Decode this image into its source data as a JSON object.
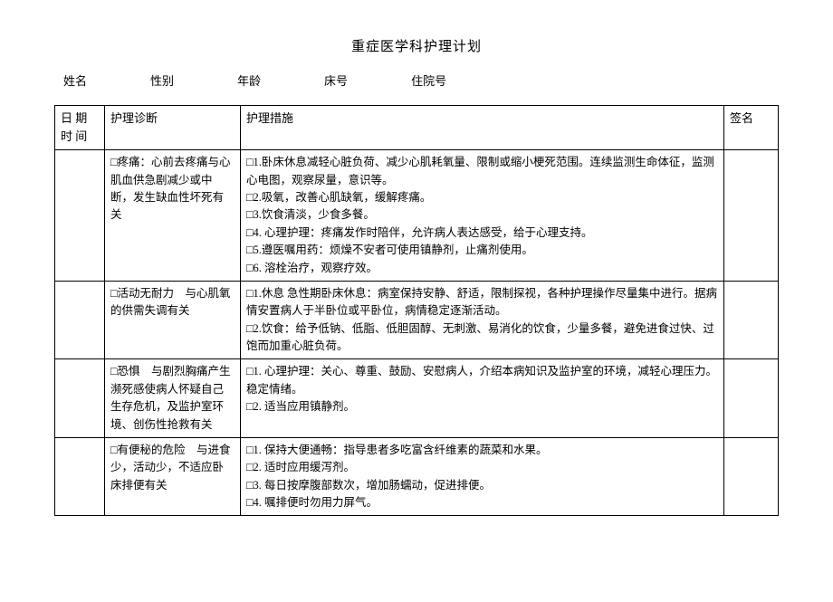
{
  "title": "重症医学科护理计划",
  "info": {
    "name_label": "姓名",
    "gender_label": "性别",
    "age_label": "年龄",
    "bed_label": "床号",
    "admission_label": "住院号"
  },
  "headers": {
    "date": "日 期",
    "time": "时 间",
    "diagnosis": "护理诊断",
    "measures": "护理措施",
    "signature": "签名"
  },
  "rows": [
    {
      "diagnosis": "□疼痛：心前去疼痛与心肌血供急剧减少或中断，发生缺血性坏死有关",
      "measures": "□1.卧床休息减轻心脏负荷、减少心肌耗氧量、限制或缩小梗死范围。连续监测生命体征，监测心电图，观察尿量，意识等。\n□2.吸氧，改善心肌缺氧，缓解疼痛。\n□3.饮食清淡，少食多餐。\n□4. 心理护理：疼痛发作时陪伴，允许病人表达感受，给于心理支持。\n□5.遵医嘱用药：烦燥不安者可使用镇静剂，止痛剂使用。\n□6. 溶栓治疗，观察疗效。"
    },
    {
      "diagnosis": "□活动无耐力　与心肌氧的供需失调有关",
      "measures": "□1.休息 急性期卧床休息：病室保持安静、舒适，限制探视，各种护理操作尽量集中进行。据病情安置病人于半卧位或平卧位，病情稳定逐渐活动。\n□2.饮食：给予低钠、低脂、低胆固醇、无刺激、易消化的饮食，少量多餐，避免进食过快、过饱而加重心脏负荷。"
    },
    {
      "diagnosis": "□恐惧　与剧烈胸痛产生濒死感使病人怀疑自己生存危机，及监护室环境、创伤性抢救有关",
      "measures": "□1. 心理护理：关心、尊重、鼓励、安慰病人，介绍本病知识及监护室的环境，减轻心理压力。稳定情绪。\n□2. 适当应用镇静剂。"
    },
    {
      "diagnosis": "□有便秘的危险　与进食少，活动少，不适应卧床排便有关",
      "measures": "□1. 保持大便通畅：指导患者多吃富含纤维素的蔬菜和水果。\n□2. 适时应用缓泻剂。\n□3. 每日按摩腹部数次，增加肠蠕动，促进排便。\n□4. 嘱排便时勿用力屏气。"
    }
  ],
  "colors": {
    "text": "#000000",
    "background": "#ffffff",
    "border": "#000000"
  }
}
